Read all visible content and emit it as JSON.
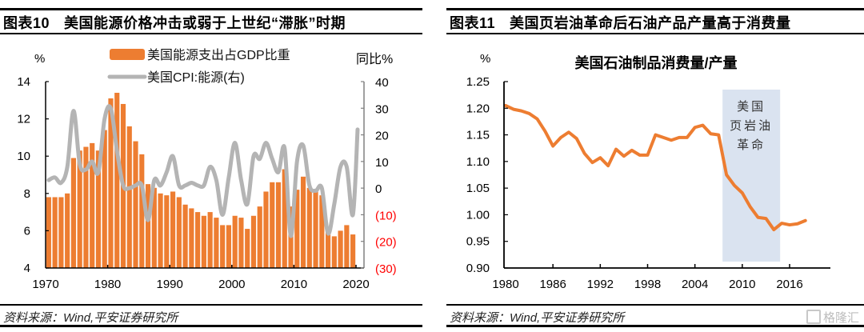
{
  "left_panel": {
    "figure_label": "图表10",
    "figure_title": "美国能源价格冲击或弱于上世纪“滞胀”时期",
    "source": "资料来源：Wind,平安证券研究所"
  },
  "right_panel": {
    "figure_label": "图表11",
    "figure_title": "美国页岩油革命后石油产品产量高于消费量",
    "source": "资料来源：Wind,平安证券研究所",
    "watermark": "格隆汇"
  },
  "colors": {
    "bar": "#ED7D31",
    "cpi_line": "#B4B4B4",
    "ratio_line": "#ED7D31",
    "shade": "#DAE3F0",
    "negative_tick": "#FF0000"
  },
  "chart_data": [
    {
      "type": "bar",
      "title": "",
      "ylabel": "%",
      "y2label": "同比%",
      "xlabel": "",
      "ylim": [
        4,
        14
      ],
      "y2lim": [
        -30,
        40
      ],
      "xlim": [
        1970,
        2020
      ],
      "grid": false,
      "legend_position": "top-center",
      "x_ticks": [
        "1970",
        "1980",
        "1990",
        "2000",
        "2010",
        "2020"
      ],
      "y_ticks": [
        "4",
        "6",
        "8",
        "10",
        "12",
        "14"
      ],
      "y2_ticks": [
        "40",
        "30",
        "20",
        "10",
        "0",
        "(10)",
        "(20)",
        "(30)"
      ],
      "series": [
        {
          "name": "美国能源支出占GDP比重",
          "type": "bar",
          "axis": "left",
          "x": [
            1970,
            1971,
            1972,
            1973,
            1974,
            1975,
            1976,
            1977,
            1978,
            1979,
            1980,
            1981,
            1982,
            1983,
            1984,
            1985,
            1986,
            1987,
            1988,
            1989,
            1990,
            1991,
            1992,
            1993,
            1994,
            1995,
            1996,
            1997,
            1998,
            1999,
            2000,
            2001,
            2002,
            2003,
            2004,
            2005,
            2006,
            2007,
            2008,
            2009,
            2010,
            2011,
            2012,
            2013,
            2014,
            2015,
            2016,
            2017,
            2018,
            2019
          ],
          "values": [
            7.8,
            7.8,
            7.8,
            8.0,
            9.9,
            10.3,
            10.5,
            10.7,
            10.3,
            11.4,
            13.1,
            13.4,
            12.8,
            11.6,
            10.8,
            10.1,
            8.5,
            8.3,
            8.0,
            7.9,
            8.1,
            7.8,
            7.4,
            7.2,
            7.0,
            6.8,
            7.0,
            6.7,
            6.3,
            6.3,
            6.8,
            6.7,
            6.1,
            6.8,
            7.3,
            8.1,
            8.6,
            8.6,
            9.3,
            7.3,
            8.2,
            8.9,
            8.3,
            8.2,
            7.9,
            6.2,
            5.7,
            6.0,
            6.3,
            5.8
          ]
        },
        {
          "name": "美国CPI:能源(右)",
          "type": "line",
          "axis": "right",
          "x": [
            1970,
            1971,
            1972,
            1973,
            1974,
            1975,
            1976,
            1977,
            1978,
            1979,
            1980,
            1981,
            1982,
            1983,
            1984,
            1985,
            1986,
            1987,
            1988,
            1989,
            1990,
            1991,
            1992,
            1993,
            1994,
            1995,
            1996,
            1997,
            1998,
            1999,
            2000,
            2001,
            2002,
            2003,
            2004,
            2005,
            2006,
            2007,
            2008,
            2009,
            2010,
            2011,
            2012,
            2013,
            2014,
            2015,
            2016,
            2017,
            2018,
            2019,
            2020
          ],
          "values": [
            3,
            4,
            2,
            8,
            29,
            9,
            7,
            10,
            6,
            26,
            30,
            14,
            1,
            0,
            1,
            1,
            -12,
            3,
            1,
            6,
            12,
            1,
            1,
            2,
            1,
            1,
            8,
            3,
            -10,
            4,
            17,
            3,
            -6,
            12,
            11,
            17,
            11,
            6,
            15,
            -18,
            10,
            16,
            1,
            -1,
            0,
            -17,
            -6,
            8,
            8,
            -10,
            22
          ]
        }
      ]
    },
    {
      "type": "line",
      "title": "美国石油制品消费量/产量",
      "ylabel": "%",
      "xlabel": "",
      "ylim": [
        0.9,
        1.25
      ],
      "xlim": [
        1980,
        2018
      ],
      "grid": false,
      "x_ticks": [
        "1980",
        "1986",
        "1992",
        "1998",
        "2004",
        "2010",
        "2016"
      ],
      "y_ticks": [
        "0.90",
        "0.95",
        "1.00",
        "1.05",
        "1.10",
        "1.15",
        "1.20",
        "1.25"
      ],
      "annotation": {
        "lines": [
          "美国",
          "页岩油",
          "革命"
        ],
        "x_range": [
          2007.5,
          2014.8
        ]
      },
      "series": [
        {
          "name": "美国石油制品消费量/产量",
          "x": [
            1980,
            1981,
            1982,
            1983,
            1984,
            1985,
            1986,
            1987,
            1988,
            1989,
            1990,
            1991,
            1992,
            1993,
            1994,
            1995,
            1996,
            1997,
            1998,
            1999,
            2000,
            2001,
            2002,
            2003,
            2004,
            2005,
            2006,
            2007,
            2008,
            2009,
            2010,
            2011,
            2012,
            2013,
            2014,
            2015,
            2016,
            2017,
            2018
          ],
          "values": [
            1.205,
            1.198,
            1.195,
            1.19,
            1.18,
            1.157,
            1.129,
            1.145,
            1.155,
            1.143,
            1.115,
            1.098,
            1.107,
            1.092,
            1.123,
            1.11,
            1.121,
            1.112,
            1.112,
            1.15,
            1.145,
            1.14,
            1.145,
            1.145,
            1.164,
            1.168,
            1.152,
            1.15,
            1.075,
            1.055,
            1.041,
            1.015,
            0.995,
            0.993,
            0.972,
            0.984,
            0.981,
            0.983,
            0.989
          ]
        }
      ]
    }
  ]
}
